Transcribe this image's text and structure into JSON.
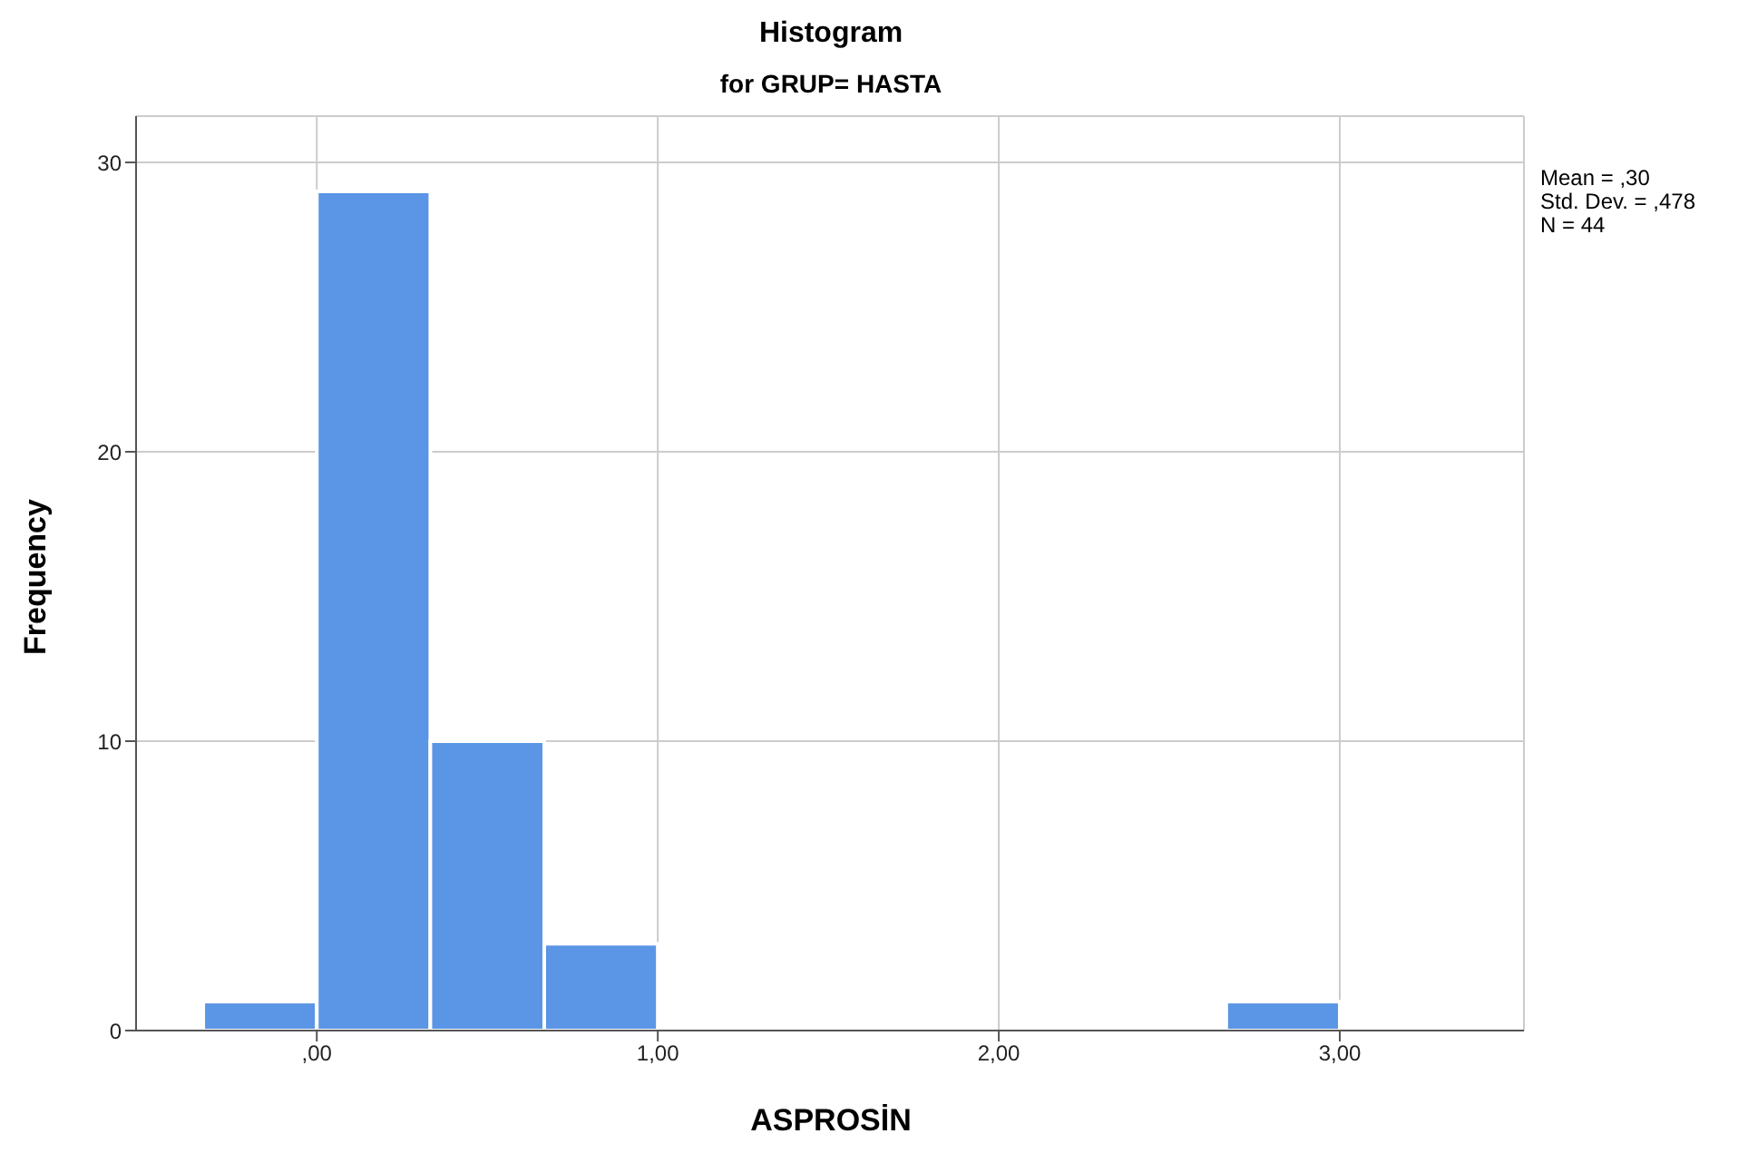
{
  "chart_data": {
    "type": "histogram",
    "title": "Histogram",
    "subtitle": "for GRUP= HASTA",
    "xlabel": "ASPROSİN",
    "ylabel": "Frequency",
    "annotations": [
      "Mean = ,30",
      "Std. Dev. = ,478",
      "N = 44"
    ],
    "bins": [
      -0.333,
      0,
      0.333,
      0.667,
      1,
      1.333,
      1.667,
      2,
      2.333,
      2.667,
      3
    ],
    "values": [
      1,
      29,
      10,
      3,
      0,
      0,
      0,
      0,
      0,
      1
    ],
    "color": "#5b95e5",
    "xlim": [
      -0.53,
      3.54
    ],
    "xticks": [
      {
        "value": 0,
        "label": ",00"
      },
      {
        "value": 1,
        "label": "1,00"
      },
      {
        "value": 2,
        "label": "2,00"
      },
      {
        "value": 3,
        "label": "3,00"
      }
    ],
    "ylim": [
      0,
      31.6
    ],
    "yticks": [
      0,
      10,
      20,
      30
    ],
    "grid": true
  }
}
